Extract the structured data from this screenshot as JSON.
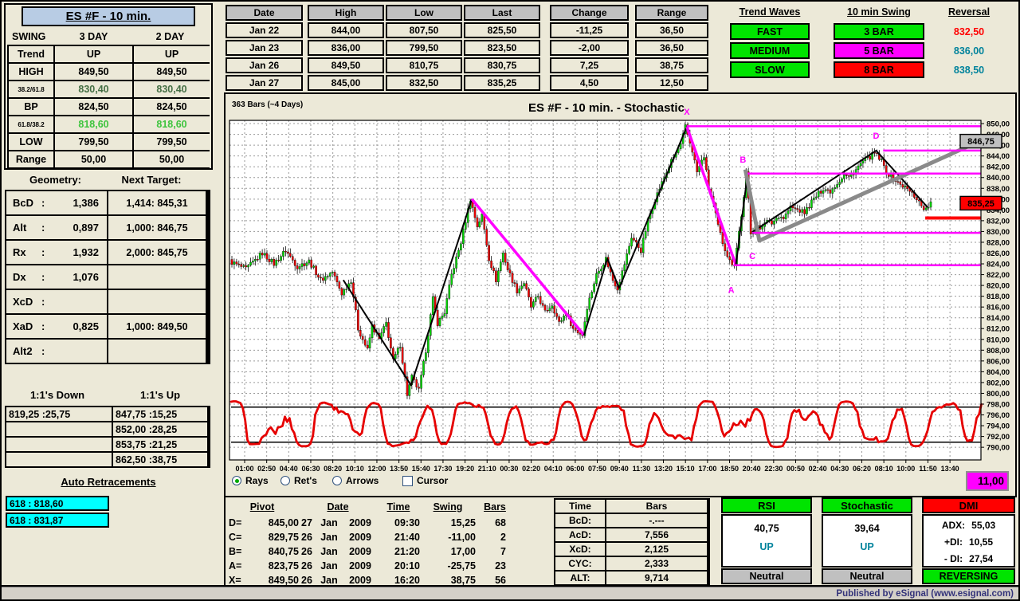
{
  "palette": {
    "green": "#00e400",
    "red": "#ff0000",
    "cyan": "#00ffff",
    "yellow": "#ffff00",
    "magenta": "#ff00ff",
    "gray": "#c0c0c0",
    "title_blue": "#b8cce4",
    "teal_text": "#00839c",
    "background": "#ece9d8"
  },
  "swing_panel": {
    "title": "ES #F - 10 min.",
    "headers": [
      "SWING",
      "3 DAY",
      "2 DAY"
    ],
    "rows": [
      {
        "label": "Trend",
        "lcls": "",
        "c1": {
          "t": "UP",
          "cls": "bg-green"
        },
        "c2": {
          "t": "UP",
          "cls": "bg-green"
        }
      },
      {
        "label": "HIGH",
        "lcls": "",
        "c1": {
          "t": "849,50",
          "cls": "bg-gray"
        },
        "c2": {
          "t": "849,50",
          "cls": "bg-gray"
        }
      },
      {
        "label": "38.2/61.8",
        "lcls": "sm bg-white",
        "c1": {
          "t": "830,40",
          "cls": "bg-green tx-dgreen"
        },
        "c2": {
          "t": "830,40",
          "cls": "bg-green tx-dgreen"
        }
      },
      {
        "label": "BP",
        "lcls": "",
        "c1": {
          "t": "824,50",
          "cls": "bg-green"
        },
        "c2": {
          "t": "824,50",
          "cls": "bg-green"
        }
      },
      {
        "label": "61.8/38.2",
        "lcls": "sm bg-white",
        "c1": {
          "t": "818,60",
          "cls": "bg-green tx-lgreen"
        },
        "c2": {
          "t": "818,60",
          "cls": "bg-green tx-lgreen"
        }
      },
      {
        "label": "LOW",
        "lcls": "",
        "c1": {
          "t": "799,50",
          "cls": "bg-white"
        },
        "c2": {
          "t": "799,50",
          "cls": "bg-white"
        }
      },
      {
        "label": "Range",
        "lcls": "",
        "c1": {
          "t": "50,00",
          "cls": "bg-gray"
        },
        "c2": {
          "t": "50,00",
          "cls": "bg-gray"
        }
      }
    ]
  },
  "daily": {
    "date": {
      "header": "Date",
      "cells": [
        {
          "t": "Jan  22",
          "cls": "bg-gray"
        },
        {
          "t": "Jan  23",
          "cls": "bg-gray"
        },
        {
          "t": "Jan  26",
          "cls": "bg-gray"
        },
        {
          "t": "Jan  27",
          "cls": "bg-gray"
        }
      ]
    },
    "high": {
      "header": "High",
      "cells": [
        {
          "t": "844,00",
          "cls": "bg-green"
        },
        {
          "t": "836,00",
          "cls": "bg-red"
        },
        {
          "t": "849,50",
          "cls": "bg-green"
        },
        {
          "t": "845,00",
          "cls": "bg-red"
        }
      ]
    },
    "low": {
      "header": "Low",
      "cells": [
        {
          "t": "807,50",
          "cls": "bg-green"
        },
        {
          "t": "799,50",
          "cls": "bg-red"
        },
        {
          "t": "810,75",
          "cls": "bg-green"
        },
        {
          "t": "832,50",
          "cls": "bg-green"
        }
      ]
    },
    "last": {
      "header": "Last",
      "cells": [
        {
          "t": "825,50",
          "cls": "bg-red"
        },
        {
          "t": "823,50",
          "cls": "bg-cyan"
        },
        {
          "t": "830,75",
          "cls": "bg-green"
        },
        {
          "t": "835,25",
          "cls": "bg-green"
        }
      ]
    },
    "change": {
      "header": "Change",
      "cells": [
        {
          "t": "-11,25",
          "cls": "bg-red"
        },
        {
          "t": "-2,00",
          "cls": "bg-cyan"
        },
        {
          "t": "7,25",
          "cls": "bg-green"
        },
        {
          "t": "4,50",
          "cls": "bg-green"
        }
      ]
    },
    "range": {
      "header": "Range",
      "cells": [
        {
          "t": "36,50",
          "cls": "bg-yellow"
        },
        {
          "t": "36,50",
          "cls": "bg-yellow"
        },
        {
          "t": "38,75",
          "cls": "bg-yellow"
        },
        {
          "t": "12,50",
          "cls": "bg-yellow"
        }
      ]
    }
  },
  "trend_waves": {
    "title": "Trend Waves",
    "items": [
      {
        "t": "FAST",
        "cls": "bg-green"
      },
      {
        "t": "MEDIUM",
        "cls": "bg-green"
      },
      {
        "t": "SLOW",
        "cls": "bg-green"
      }
    ]
  },
  "swing_10min": {
    "title": "10 min Swing",
    "items": [
      {
        "t": "3 BAR",
        "cls": "bg-green"
      },
      {
        "t": "5 BAR",
        "cls": "bg-magenta"
      },
      {
        "t": "8 BAR",
        "cls": "bg-red"
      }
    ]
  },
  "reversal": {
    "title": "Reversal",
    "items": [
      {
        "t": "832,50",
        "cls": "tx-red"
      },
      {
        "t": "836,00",
        "cls": "tx-teal"
      },
      {
        "t": "838,50",
        "cls": "tx-teal"
      }
    ]
  },
  "geometry": {
    "title": "Geometry:",
    "target_title": "Next Target:",
    "rows": [
      {
        "name": "BcD",
        "ratio": "1,386",
        "target": "1,414: 845,31",
        "lcls": "bg-gray",
        "rcls": "bg-gray"
      },
      {
        "name": "Alt",
        "ratio": "0,897",
        "target": "1,000: 846,75",
        "lcls": "bg-gray",
        "rcls": "bg-gray"
      },
      {
        "name": "Rx",
        "ratio": "1,932",
        "target": "2,000: 845,75",
        "lcls": "bg-gray",
        "rcls": "bg-gray"
      },
      {
        "name": "Dx",
        "ratio": "1,076",
        "target": "",
        "lcls": "bg-gray",
        "rcls": "bg-white"
      },
      {
        "name": "XcD",
        "ratio": "",
        "target": "",
        "lcls": "bg-white",
        "rcls": "bg-white"
      },
      {
        "name": "XaD",
        "ratio": "0,825",
        "target": "1,000: 849,50",
        "lcls": "bg-gray",
        "rcls": "bg-gray"
      },
      {
        "name": "Alt2",
        "ratio": "",
        "target": "",
        "lcls": "bg-white",
        "rcls": "bg-white"
      }
    ]
  },
  "ratios": {
    "down_title": "1:1's Down",
    "up_title": "1:1's Up",
    "rows": [
      {
        "down": "819,25 :25,75",
        "up": "847,75 :15,25"
      },
      {
        "down": "",
        "up": "852,00 :28,25"
      },
      {
        "down": "",
        "up": "853,75 :21,25"
      },
      {
        "down": "",
        "up": "862,50 :38,75"
      }
    ]
  },
  "auto_retracements": {
    "title": "Auto Retracements",
    "items": [
      "618 : 818,60",
      "618 : 831,87"
    ]
  },
  "chart": {
    "range_box": "11,00",
    "controls": [
      {
        "label": "Rays",
        "type": "radio",
        "state": "sel"
      },
      {
        "label": "Ret's",
        "type": "radio",
        "state": ""
      },
      {
        "label": "Arrows",
        "type": "radio",
        "state": ""
      },
      {
        "label": "Cursor",
        "type": "checkbox",
        "state": ""
      }
    ]
  },
  "chart_data": {
    "type": "candlestick",
    "title": "ES #F - 10 min. - Stochastic",
    "bars_note": "363 Bars (~4 Days)",
    "y_axis": {
      "min": 790,
      "max": 850,
      "step": 2
    },
    "x_labels": [
      "01:00",
      "02:50",
      "04:40",
      "06:30",
      "08:20",
      "10:10",
      "12:00",
      "13:50",
      "15:40",
      "17:30",
      "19:20",
      "21:10",
      "00:30",
      "02:20",
      "04:10",
      "06:00",
      "07:50",
      "09:40",
      "11:30",
      "13:20",
      "15:10",
      "17:00",
      "18:50",
      "20:40",
      "22:30",
      "00:50",
      "02:40",
      "04:30",
      "06:20",
      "08:10",
      "10:00",
      "11:50",
      "13:40"
    ],
    "bar_count": 300,
    "last_price": "835,25",
    "price_anchors": [
      [
        0,
        824.5
      ],
      [
        7,
        823
      ],
      [
        14,
        826
      ],
      [
        19,
        824
      ],
      [
        24,
        826.5
      ],
      [
        29,
        823.5
      ],
      [
        34,
        824.5
      ],
      [
        39,
        821
      ],
      [
        44,
        822.5
      ],
      [
        48,
        818.5
      ],
      [
        52,
        821
      ],
      [
        55,
        812
      ],
      [
        59,
        808
      ],
      [
        61,
        812.5
      ],
      [
        64,
        810
      ],
      [
        67,
        813
      ],
      [
        70,
        806
      ],
      [
        73,
        809
      ],
      [
        76,
        799.8
      ],
      [
        78,
        803
      ],
      [
        81,
        800.5
      ],
      [
        84,
        808
      ],
      [
        87,
        817.5
      ],
      [
        89,
        813
      ],
      [
        92,
        815
      ],
      [
        95,
        822
      ],
      [
        99,
        828
      ],
      [
        103,
        836
      ],
      [
        106,
        831
      ],
      [
        108,
        833
      ],
      [
        111,
        825
      ],
      [
        114,
        821
      ],
      [
        117,
        826
      ],
      [
        119,
        823
      ],
      [
        123,
        819
      ],
      [
        126,
        820.5
      ],
      [
        129,
        816
      ],
      [
        132,
        818
      ],
      [
        135,
        815
      ],
      [
        138,
        816.5
      ],
      [
        141,
        813
      ],
      [
        144,
        815
      ],
      [
        147,
        812
      ],
      [
        151,
        810.8
      ],
      [
        153,
        816
      ],
      [
        157,
        822
      ],
      [
        161,
        825
      ],
      [
        164,
        821
      ],
      [
        166,
        819.5
      ],
      [
        169,
        824
      ],
      [
        172,
        829
      ],
      [
        176,
        826.5
      ],
      [
        179,
        832
      ],
      [
        182,
        836
      ],
      [
        186,
        840
      ],
      [
        189,
        843
      ],
      [
        193,
        846
      ],
      [
        195,
        849.4
      ],
      [
        198,
        845
      ],
      [
        200,
        841
      ],
      [
        203,
        844
      ],
      [
        205,
        838
      ],
      [
        207,
        835
      ],
      [
        209,
        831
      ],
      [
        211,
        828
      ],
      [
        214,
        824.5
      ],
      [
        216,
        823.9
      ],
      [
        218,
        830
      ],
      [
        220,
        836
      ],
      [
        221,
        840.7
      ],
      [
        222,
        836
      ],
      [
        223,
        829.9
      ],
      [
        225,
        831
      ],
      [
        227,
        830.5
      ],
      [
        229,
        832
      ],
      [
        232,
        831.5
      ],
      [
        235,
        833
      ],
      [
        237,
        832.5
      ],
      [
        240,
        834.5
      ],
      [
        243,
        834
      ],
      [
        246,
        833.5
      ],
      [
        249,
        835.5
      ],
      [
        252,
        837
      ],
      [
        254,
        838
      ],
      [
        257,
        837.5
      ],
      [
        260,
        839
      ],
      [
        263,
        840.5
      ],
      [
        265,
        840
      ],
      [
        268,
        841.5
      ],
      [
        271,
        843
      ],
      [
        273,
        843.5
      ],
      [
        276,
        844.5
      ],
      [
        279,
        843
      ],
      [
        281,
        841
      ],
      [
        284,
        839.8
      ],
      [
        286,
        839
      ],
      [
        289,
        838.2
      ],
      [
        292,
        837
      ],
      [
        294,
        836.2
      ],
      [
        296,
        834.8
      ],
      [
        298,
        834
      ],
      [
        300,
        835.3
      ]
    ],
    "pivots": [
      {
        "name": "X",
        "price": 849.5
      },
      {
        "name": "A",
        "price": 823.75
      },
      {
        "name": "B",
        "price": 840.75
      },
      {
        "name": "C",
        "price": 829.75
      },
      {
        "name": "D",
        "price": 845.0
      }
    ],
    "pivot_labels": [
      {
        "n": "X",
        "b": 195,
        "p": 851.6
      },
      {
        "n": "A",
        "b": 214,
        "p": 818.6
      },
      {
        "n": "B",
        "b": 219,
        "p": 842.8
      },
      {
        "n": "C",
        "b": 223,
        "p": 824.9
      },
      {
        "n": "D",
        "b": 276,
        "p": 847.2
      }
    ],
    "zigzag": [
      {
        "c": "black",
        "w": 2,
        "pts": [
          [
            48,
            821
          ],
          [
            77,
            801.5
          ],
          [
            103,
            836
          ]
        ]
      },
      {
        "c": "magenta",
        "w": 3.5,
        "pts": [
          [
            103,
            836
          ],
          [
            151,
            810.8
          ]
        ]
      },
      {
        "c": "black",
        "w": 2,
        "pts": [
          [
            151,
            810.8
          ],
          [
            161,
            825
          ],
          [
            166,
            819.5
          ],
          [
            195,
            849.4
          ]
        ]
      },
      {
        "c": "magenta",
        "w": 3.5,
        "pts": [
          [
            195,
            849.4
          ],
          [
            216,
            823.8
          ]
        ]
      },
      {
        "c": "black",
        "w": 2,
        "pts": [
          [
            216,
            823.8
          ],
          [
            221,
            840.7
          ]
        ]
      },
      {
        "c": "black",
        "w": 2,
        "pts": [
          [
            223,
            829.9
          ],
          [
            276,
            845
          ],
          [
            298,
            834.5
          ]
        ]
      },
      {
        "c": "gray",
        "w": 5,
        "pts": [
          [
            220,
            841.5
          ],
          [
            226,
            828.3
          ],
          [
            321,
            846.9
          ]
        ]
      }
    ],
    "hlines": [
      {
        "p": 849.5,
        "b": 195,
        "c": "magenta",
        "w": 2.5
      },
      {
        "p": 845.0,
        "b": 279,
        "c": "magenta",
        "w": 2.5
      },
      {
        "p": 840.75,
        "b": 221,
        "c": "magenta",
        "w": 2.5
      },
      {
        "p": 829.75,
        "b": 223,
        "c": "magenta",
        "w": 2.5
      },
      {
        "p": 823.75,
        "b": 215,
        "c": "magenta",
        "w": 2.5
      },
      {
        "p": 832.5,
        "b": 297,
        "c": "red",
        "w": 4
      }
    ],
    "price_tags": [
      {
        "t": "846,75",
        "p": 846.75,
        "bg": "#c0c0c0",
        "fg": "#000000"
      },
      {
        "t": "835,25",
        "p": 835.25,
        "bg": "#ff0000",
        "fg": "#000000"
      }
    ],
    "stochastic": {
      "bands": [
        797.45,
        790.95
      ],
      "color": "#e60000",
      "center": 794.3,
      "amp": 4.3
    }
  },
  "pivot_table": {
    "headers": {
      "pivot": "Pivot",
      "date": "Date",
      "time": "Time",
      "swing": "Swing",
      "bars": "Bars"
    },
    "rows": [
      {
        "name": "D=",
        "price": "845,00",
        "day": "27",
        "mon": "Jan",
        "yr": "2009",
        "time": "09:30",
        "swing": "15,25",
        "bars": "68"
      },
      {
        "name": "C=",
        "price": "829,75",
        "day": "26",
        "mon": "Jan",
        "yr": "2009",
        "time": "21:40",
        "swing": "-11,00",
        "bars": "2"
      },
      {
        "name": "B=",
        "price": "840,75",
        "day": "26",
        "mon": "Jan",
        "yr": "2009",
        "time": "21:20",
        "swing": "17,00",
        "bars": "7"
      },
      {
        "name": "A=",
        "price": "823,75",
        "day": "26",
        "mon": "Jan",
        "yr": "2009",
        "time": "20:10",
        "swing": "-25,75",
        "bars": "23"
      },
      {
        "name": "X=",
        "price": "849,50",
        "day": "26",
        "mon": "Jan",
        "yr": "2009",
        "time": "16:20",
        "swing": "38,75",
        "bars": "56"
      }
    ]
  },
  "time_bars": {
    "headers": {
      "time": "Time",
      "bars": "Bars"
    },
    "rows": [
      {
        "label": "BcD:",
        "value": "-.---"
      },
      {
        "label": "AcD:",
        "value": "7,556"
      },
      {
        "label": "XcD:",
        "value": "2,125"
      },
      {
        "label": "CYC:",
        "value": "2,333"
      },
      {
        "label": "ALT:",
        "value": "9,714"
      }
    ]
  },
  "gauges": [
    {
      "title": "RSI",
      "value": "40,75",
      "direction": "UP",
      "status": "Neutral",
      "hcls": "bg-green",
      "scls": "bg-gray",
      "pcls": "pos-rsi"
    },
    {
      "title": "Stochastic",
      "value": "39,64",
      "direction": "UP",
      "status": "Neutral",
      "hcls": "bg-green",
      "scls": "bg-gray",
      "pcls": "pos-stoch"
    }
  ],
  "dmi": {
    "title": "DMI",
    "hcls": "bg-red",
    "rows": [
      {
        "l": "ADX:",
        "v": "55,03"
      },
      {
        "l": "+DI:",
        "v": "10,55"
      },
      {
        "l": "- DI:",
        "v": "27,54"
      }
    ],
    "status": "REVERSING",
    "scls": "bg-green"
  },
  "footer": {
    "text": "Published by eSignal (www.esignal.com)"
  }
}
